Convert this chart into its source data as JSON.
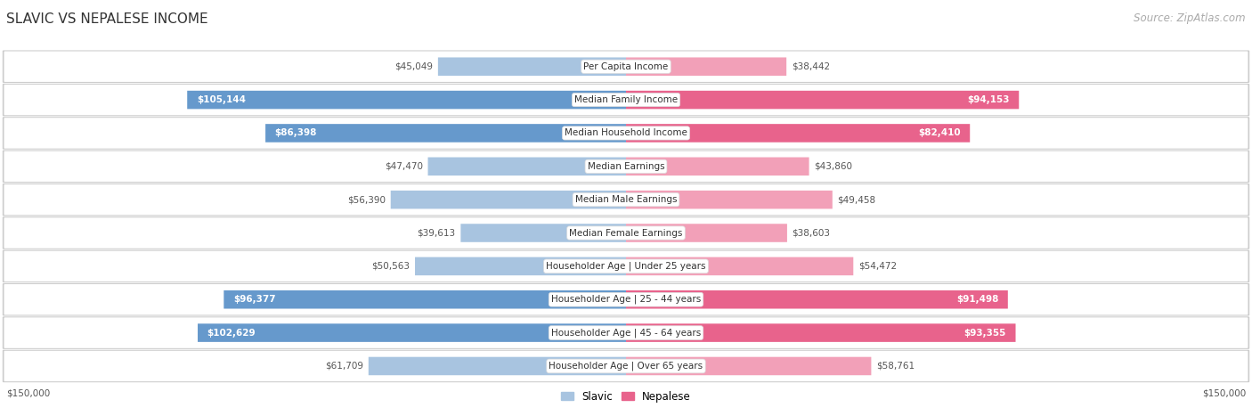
{
  "title": "SLAVIC VS NEPALESE INCOME",
  "source": "Source: ZipAtlas.com",
  "categories": [
    "Per Capita Income",
    "Median Family Income",
    "Median Household Income",
    "Median Earnings",
    "Median Male Earnings",
    "Median Female Earnings",
    "Householder Age | Under 25 years",
    "Householder Age | 25 - 44 years",
    "Householder Age | 45 - 64 years",
    "Householder Age | Over 65 years"
  ],
  "slavic_values": [
    45049,
    105144,
    86398,
    47470,
    56390,
    39613,
    50563,
    96377,
    102629,
    61709
  ],
  "nepalese_values": [
    38442,
    94153,
    82410,
    43860,
    49458,
    38603,
    54472,
    91498,
    93355,
    58761
  ],
  "slavic_labels": [
    "$45,049",
    "$105,144",
    "$86,398",
    "$47,470",
    "$56,390",
    "$39,613",
    "$50,563",
    "$96,377",
    "$102,629",
    "$61,709"
  ],
  "nepalese_labels": [
    "$38,442",
    "$94,153",
    "$82,410",
    "$43,860",
    "$49,458",
    "$38,603",
    "$54,472",
    "$91,498",
    "$93,355",
    "$58,761"
  ],
  "slavic_color_light": "#a8c4e0",
  "slavic_color_dark": "#6699cc",
  "nepalese_color_light": "#f2a0b8",
  "nepalese_color_dark": "#e8638c",
  "max_value": 150000,
  "background_color": "#ffffff",
  "row_bg_color": "#ffffff",
  "row_border_color": "#cccccc",
  "row_outer_bg": "#e8e8e8",
  "title_fontsize": 11,
  "label_fontsize": 7.5,
  "category_fontsize": 7.5,
  "legend_fontsize": 8.5,
  "source_fontsize": 8.5,
  "threshold": 75000
}
